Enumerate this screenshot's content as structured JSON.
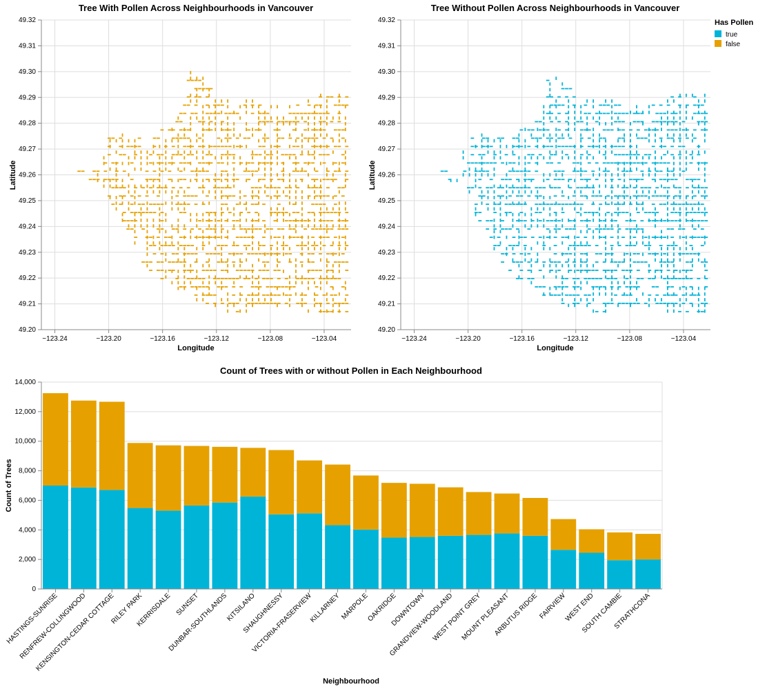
{
  "colors": {
    "true": "#00b4d8",
    "false": "#e6a100"
  },
  "legend": {
    "title": "Has Pollen",
    "items": [
      {
        "label": "true",
        "color": "#00b4d8"
      },
      {
        "label": "false",
        "color": "#e6a100"
      }
    ]
  },
  "chart_data": [
    {
      "type": "scatter",
      "title": "Tree With Pollen Across Neighbourhoods in Vancouver",
      "xlabel": "Longitude",
      "ylabel": "Latitude",
      "xlim": [
        -123.25,
        -123.02
      ],
      "ylim": [
        49.2,
        49.32
      ],
      "xticks": [
        -123.24,
        -123.2,
        -123.16,
        -123.12,
        -123.08,
        -123.04
      ],
      "xtick_labels": [
        "−123.24",
        "−123.20",
        "−123.16",
        "−123.12",
        "−123.08",
        "−123.04"
      ],
      "yticks": [
        49.2,
        49.21,
        49.22,
        49.23,
        49.24,
        49.25,
        49.26,
        49.27,
        49.28,
        49.29,
        49.3,
        49.31,
        49.32
      ],
      "ytick_labels": [
        "49.20",
        "49.21",
        "49.22",
        "49.23",
        "49.24",
        "49.25",
        "49.26",
        "49.27",
        "49.28",
        "49.29",
        "49.30",
        "49.31",
        "49.32"
      ],
      "series": "false",
      "grid": true
    },
    {
      "type": "scatter",
      "title": "Tree Without Pollen Across Neighbourhoods in Vancouver",
      "xlabel": "Longitude",
      "ylabel": "Latitude",
      "xlim": [
        -123.25,
        -123.02
      ],
      "ylim": [
        49.2,
        49.32
      ],
      "xticks": [
        -123.24,
        -123.2,
        -123.16,
        -123.12,
        -123.08,
        -123.04
      ],
      "xtick_labels": [
        "−123.24",
        "−123.20",
        "−123.16",
        "−123.12",
        "−123.08",
        "−123.04"
      ],
      "yticks": [
        49.2,
        49.21,
        49.22,
        49.23,
        49.24,
        49.25,
        49.26,
        49.27,
        49.28,
        49.29,
        49.3,
        49.31,
        49.32
      ],
      "ytick_labels": [
        "49.20",
        "49.21",
        "49.22",
        "49.23",
        "49.24",
        "49.25",
        "49.26",
        "49.27",
        "49.28",
        "49.29",
        "49.30",
        "49.31",
        "49.32"
      ],
      "series": "true",
      "grid": true
    },
    {
      "type": "bar",
      "stacked": true,
      "title": "Count of Trees with or without Pollen in Each Neighbourhood",
      "xlabel": "Neighbourhood",
      "ylabel": "Count of Trees",
      "ylim": [
        0,
        14000
      ],
      "yticks": [
        0,
        2000,
        4000,
        6000,
        8000,
        10000,
        12000,
        14000
      ],
      "ytick_labels": [
        "0",
        "2,000",
        "4,000",
        "6,000",
        "8,000",
        "10,000",
        "12,000",
        "14,000"
      ],
      "categories": [
        "HASTINGS-SUNRISE",
        "RENFREW-COLLINGWOOD",
        "KENSINGTON-CEDAR COTTAGE",
        "RILEY PARK",
        "KERRISDALE",
        "SUNSET",
        "DUNBAR-SOUTHLANDS",
        "KITSILANO",
        "SHAUGHNESSY",
        "VICTORIA-FRASERVIEW",
        "KILLARNEY",
        "MARPOLE",
        "OAKRIDGE",
        "DOWNTOWN",
        "GRANDVIEW-WOODLAND",
        "WEST POINT GREY",
        "MOUNT PLEASANT",
        "ARBUTUS RIDGE",
        "FAIRVIEW",
        "WEST END",
        "SOUTH CAMBIE",
        "STRATHCONA"
      ],
      "series": [
        {
          "name": "true",
          "values": [
            7000,
            6870,
            6700,
            5480,
            5300,
            5650,
            5850,
            6250,
            5050,
            5120,
            4320,
            4020,
            3480,
            3520,
            3600,
            3660,
            3760,
            3600,
            2650,
            2450,
            1950,
            2000
          ]
        },
        {
          "name": "false",
          "values": [
            6250,
            5880,
            5970,
            4400,
            4420,
            4030,
            3770,
            3300,
            4350,
            3580,
            4100,
            3660,
            3700,
            3600,
            3280,
            2900,
            2700,
            2560,
            2080,
            1590,
            1880,
            1730
          ]
        }
      ]
    }
  ]
}
